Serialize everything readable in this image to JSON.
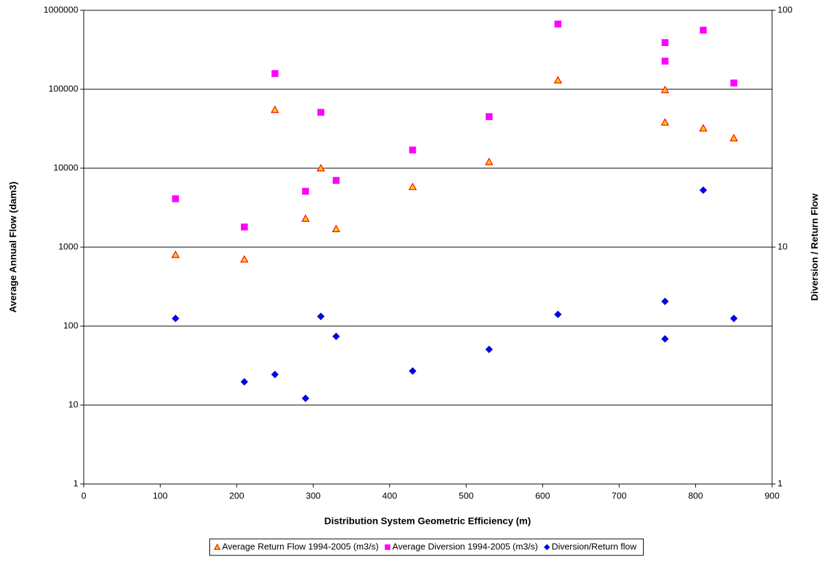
{
  "chart_data": {
    "type": "scatter",
    "x_label": "Distribution System Geometric Efficiency (m)",
    "y_label": "Average Annual Flow (dam3)",
    "y2_label": "Diversion / Return Flow",
    "x": [
      120,
      210,
      250,
      290,
      310,
      330,
      430,
      530,
      620,
      760,
      760,
      810,
      850
    ],
    "xlim": [
      0,
      900
    ],
    "xticks": [
      0,
      100,
      200,
      300,
      400,
      500,
      600,
      700,
      800,
      900
    ],
    "yscale": "log",
    "ylim": [
      1,
      1000000
    ],
    "yticks": [
      1,
      10,
      100,
      1000,
      10000,
      100000,
      1000000
    ],
    "y2scale": "log",
    "y2lim": [
      1,
      100
    ],
    "y2ticks": [
      1,
      10,
      100
    ],
    "grid": true,
    "legend": "bottom",
    "series": [
      {
        "name": "Average Return Flow 1994-2005 (m3/s)",
        "color": "#ff9900",
        "marker": "triangle",
        "values": [
          800,
          700,
          55000,
          2300,
          10000,
          1700,
          5800,
          12000,
          130000,
          98000,
          38000,
          32000,
          24000
        ]
      },
      {
        "name": "Average Diversion 1994-2005 (m3/s)",
        "color": "#ff00ff",
        "marker": "square",
        "values": [
          4100,
          1800,
          158000,
          5100,
          51000,
          7000,
          17000,
          45000,
          670000,
          390000,
          227000,
          560000,
          120000
        ]
      },
      {
        "name": "Diversion/Return flow",
        "color": "#0000ff",
        "marker": "diamond",
        "axis": "y2",
        "values": [
          5.0,
          2.7,
          2.9,
          2.3,
          5.1,
          4.2,
          3.0,
          3.7,
          5.2,
          4.1,
          5.9,
          17.4,
          5.0
        ]
      }
    ]
  }
}
